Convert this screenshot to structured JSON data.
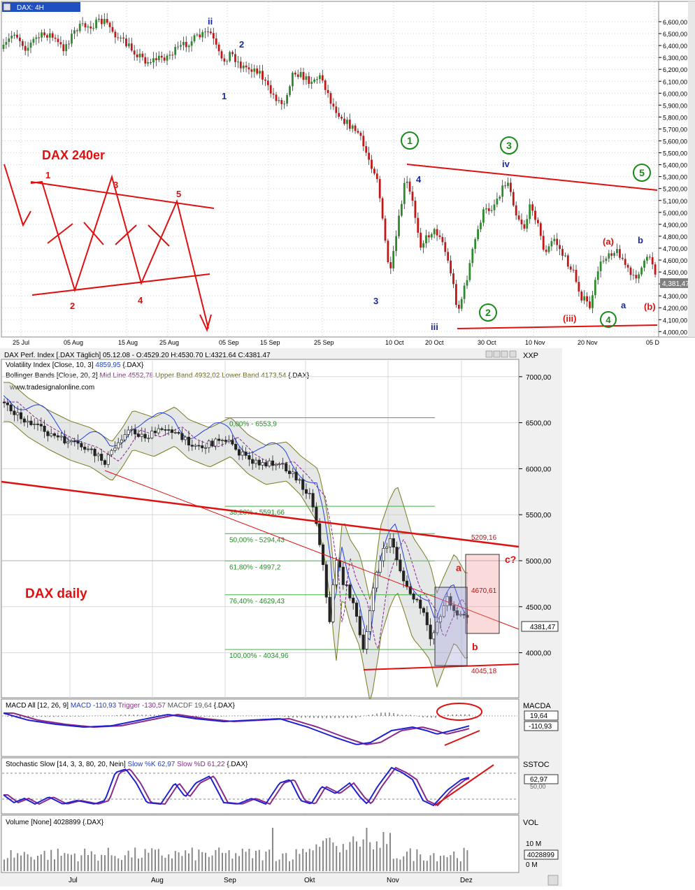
{
  "top_chart": {
    "window_title": "DAX: 4H",
    "overlay_label": "DAX 240er",
    "price_axis": [
      "6,600,00",
      "6,500,00",
      "6,400,00",
      "6,300,00",
      "6,200,00",
      "6,100,00",
      "6,000,00",
      "5,900,00",
      "5,800,00",
      "5,700,00",
      "5,600,00",
      "5,500,00",
      "5,400,00",
      "5,300,00",
      "5,200,00",
      "5,100,00",
      "5,000,00",
      "4,900,00",
      "4,800,00",
      "4,700,00",
      "4,600,00",
      "4,500,00",
      "4,400,00",
      "4,300,00",
      "4,200,00",
      "4,100,00",
      "4,000,00"
    ],
    "date_axis": [
      "25 Jul",
      "05 Aug",
      "15 Aug",
      "25 Aug",
      "05 Sep",
      "15 Sep",
      "25 Sep",
      "10 Oct",
      "20 Oct",
      "30 Oct",
      "10 Nov",
      "20 Nov",
      "05 D"
    ],
    "last_price": "4,381,47",
    "wave_labels": {
      "ii": "ii",
      "w1": "1",
      "w2": "2",
      "w3": "3",
      "w4": "4",
      "iii": "iii",
      "iv": "iv",
      "c1": "1",
      "c2": "2",
      "c3": "3",
      "c4": "4",
      "c5": "5",
      "a_paren": "(a)",
      "b_paren": "(b)",
      "a": "a",
      "b": "b",
      "iii_paren": "(iii)"
    },
    "diagram_labels": [
      "1",
      "2",
      "3",
      "4",
      "5"
    ]
  },
  "bottom_chart": {
    "header": "DAX Perf. Index [.DAX  Täglich] 05.12.08 - O:4529.20 H:4530.70 L:4321.64 C:4381.47",
    "legend": [
      {
        "prefix": "Volatility Index [Close, 10, 3]",
        "value": "4859,95",
        "suffix": "{.DAX}"
      },
      {
        "prefix": "Bollinger Bands [Close, 20, 2]",
        "mid": "Mid Line 4552,78",
        "upper": "Upper Band 4932,02",
        "lower": "Lower Band 4173,54",
        "suffix": "{.DAX}"
      }
    ],
    "watermark": "www.tradesignalonline.com",
    "axis_title": "XXP",
    "price_axis": [
      "7000,00",
      "6500,00",
      "6000,00",
      "5500,00",
      "5000,00",
      "4500,00",
      "4000,00"
    ],
    "overlay_label": "DAX daily",
    "last_price": "4381,47",
    "fib_levels": [
      {
        "label": "0,00% - 6553,9"
      },
      {
        "label": "38,20% - 5591,66"
      },
      {
        "label": "50,00% - 5294,43"
      },
      {
        "label": "61,80% - 4997,2"
      },
      {
        "label": "76,40% - 4629,43"
      },
      {
        "label": "100,00% - 4034,96"
      }
    ],
    "annotations": {
      "a": "a",
      "b": "b",
      "c": "c?",
      "p1": "5209,16",
      "p2": "4670,61",
      "p3": "4045,18"
    },
    "month_axis": [
      "Jul",
      "Aug",
      "Sep",
      "Okt",
      "Nov",
      "Dez"
    ]
  },
  "macd": {
    "header": "MACD All [12, 26, 9]",
    "macd": "MACD -110,93",
    "trigger": "Trigger -130,57",
    "macdf": "MACDF 19,64",
    "suffix": "{.DAX}",
    "axis_title": "MACDA",
    "value1": "19,64",
    "value2": "-110,93"
  },
  "stoch": {
    "header": "Stochastic Slow [14, 3, 3, 80, 20, Nein]",
    "slowk": "Slow %K 62,97",
    "slowd": "Slow %D 61,22",
    "suffix": "{.DAX}",
    "axis_title": "SSTOC",
    "value": "62,97",
    "tick": "50,00"
  },
  "volume": {
    "header": "Volume [None] 4028899",
    "suffix": "{.DAX}",
    "axis_title": "VOL",
    "tick1": "10 M",
    "tick2": "0 M",
    "value": "4028899"
  },
  "colors": {
    "up": "#2d8a2d",
    "down": "#c01818",
    "annot_red": "#e01010",
    "wave_blue": "#1a2a9a",
    "circle_green": "#1a8a1a"
  }
}
